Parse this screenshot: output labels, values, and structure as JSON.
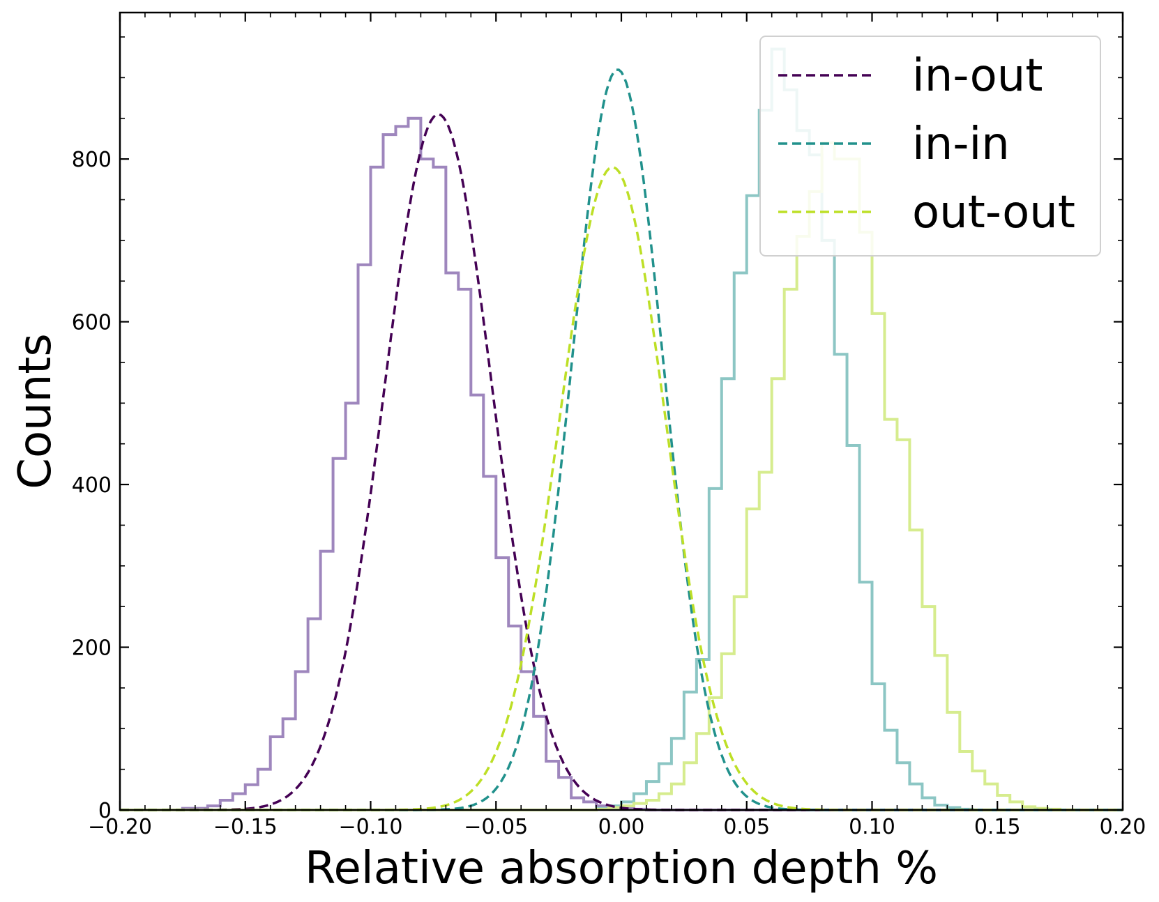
{
  "chart_data": {
    "type": "histogram",
    "xlabel": "Relative absorption depth %",
    "ylabel": "Counts",
    "xlim": [
      -0.2,
      0.2
    ],
    "ylim": [
      0,
      980
    ],
    "grid": false,
    "legend_position": "top-right",
    "x_ticks": [
      {
        "v": -0.2,
        "label": "−0.20"
      },
      {
        "v": -0.15,
        "label": "−0.15"
      },
      {
        "v": -0.1,
        "label": "−0.10"
      },
      {
        "v": -0.05,
        "label": "−0.05"
      },
      {
        "v": 0.0,
        "label": "0.00"
      },
      {
        "v": 0.05,
        "label": "0.05"
      },
      {
        "v": 0.1,
        "label": "0.10"
      },
      {
        "v": 0.15,
        "label": "0.15"
      },
      {
        "v": 0.2,
        "label": "0.20"
      }
    ],
    "y_ticks": [
      {
        "v": 0,
        "label": "0"
      },
      {
        "v": 200,
        "label": "200"
      },
      {
        "v": 400,
        "label": "400"
      },
      {
        "v": 600,
        "label": "600"
      },
      {
        "v": 800,
        "label": "800"
      }
    ],
    "bin_edges": [
      -0.2,
      -0.195,
      -0.19,
      -0.185,
      -0.18,
      -0.175,
      -0.17,
      -0.165,
      -0.16,
      -0.155,
      -0.15,
      -0.145,
      -0.14,
      -0.135,
      -0.13,
      -0.125,
      -0.12,
      -0.115,
      -0.11,
      -0.105,
      -0.1,
      -0.095,
      -0.09,
      -0.085,
      -0.08,
      -0.075,
      -0.07,
      -0.065,
      -0.06,
      -0.055,
      -0.05,
      -0.045,
      -0.04,
      -0.035,
      -0.03,
      -0.025,
      -0.02,
      -0.015,
      -0.01,
      -0.005,
      0.0,
      0.005,
      0.01,
      0.015,
      0.02,
      0.025,
      0.03,
      0.035,
      0.04,
      0.045,
      0.05,
      0.055,
      0.06,
      0.065,
      0.07,
      0.075,
      0.08,
      0.085,
      0.09,
      0.095,
      0.1,
      0.105,
      0.11,
      0.115,
      0.12,
      0.125,
      0.13,
      0.135,
      0.14,
      0.145,
      0.15,
      0.155,
      0.16,
      0.165,
      0.17,
      0.175,
      0.18,
      0.185,
      0.19,
      0.195,
      0.2
    ],
    "series": [
      {
        "name": "in-out",
        "color": "#440154",
        "hist_color": "#9e86bd",
        "fit_mean": -0.073,
        "fit_sigma": 0.0215,
        "fit_amplitude": 855,
        "counts": [
          0,
          0,
          0,
          0,
          0,
          2,
          2,
          5,
          12,
          20,
          31,
          50,
          90,
          112,
          170,
          235,
          318,
          432,
          500,
          670,
          790,
          830,
          840,
          850,
          800,
          790,
          660,
          640,
          510,
          410,
          310,
          226,
          170,
          115,
          60,
          40,
          15,
          10,
          5,
          4,
          2,
          1,
          0,
          0,
          0,
          0,
          0,
          0,
          0,
          0,
          0,
          0,
          0,
          0,
          0,
          0,
          0,
          0,
          0,
          0,
          0,
          0,
          0,
          0,
          0,
          0,
          0,
          0,
          0,
          0,
          0,
          0,
          0,
          0,
          0,
          0,
          0,
          0,
          0,
          0
        ]
      },
      {
        "name": "in-in",
        "color": "#21918c",
        "hist_color": "#8cc6c4",
        "fit_mean": -0.0015,
        "fit_sigma": 0.0182,
        "fit_amplitude": 910,
        "counts": [
          0,
          0,
          0,
          0,
          0,
          0,
          0,
          0,
          0,
          0,
          0,
          0,
          0,
          0,
          0,
          0,
          0,
          0,
          0,
          0,
          0,
          0,
          0,
          0,
          0,
          0,
          0,
          0,
          0,
          0,
          0,
          0,
          0,
          0,
          0,
          0,
          0,
          0,
          2,
          5,
          10,
          20,
          35,
          57,
          88,
          145,
          185,
          395,
          530,
          660,
          755,
          860,
          935,
          885,
          835,
          805,
          700,
          560,
          448,
          280,
          155,
          98,
          58,
          32,
          15,
          6,
          3,
          1,
          0,
          0,
          0,
          0,
          0,
          0,
          0,
          0,
          0,
          0,
          0,
          0
        ]
      },
      {
        "name": "out-out",
        "color": "#bddf26",
        "hist_color": "#d6ec8e",
        "fit_mean": -0.0035,
        "fit_sigma": 0.0212,
        "fit_amplitude": 790,
        "counts": [
          0,
          0,
          0,
          0,
          0,
          0,
          0,
          0,
          0,
          0,
          0,
          0,
          0,
          0,
          0,
          0,
          0,
          0,
          0,
          0,
          0,
          0,
          0,
          0,
          0,
          0,
          0,
          0,
          0,
          0,
          0,
          0,
          0,
          0,
          0,
          0,
          0,
          0,
          1,
          3,
          5,
          8,
          12,
          20,
          32,
          58,
          94,
          138,
          192,
          262,
          370,
          415,
          530,
          640,
          705,
          760,
          820,
          800,
          800,
          710,
          610,
          480,
          455,
          344,
          250,
          190,
          120,
          72,
          48,
          32,
          18,
          10,
          4,
          2,
          1,
          0,
          0,
          0,
          0,
          0
        ]
      }
    ]
  }
}
